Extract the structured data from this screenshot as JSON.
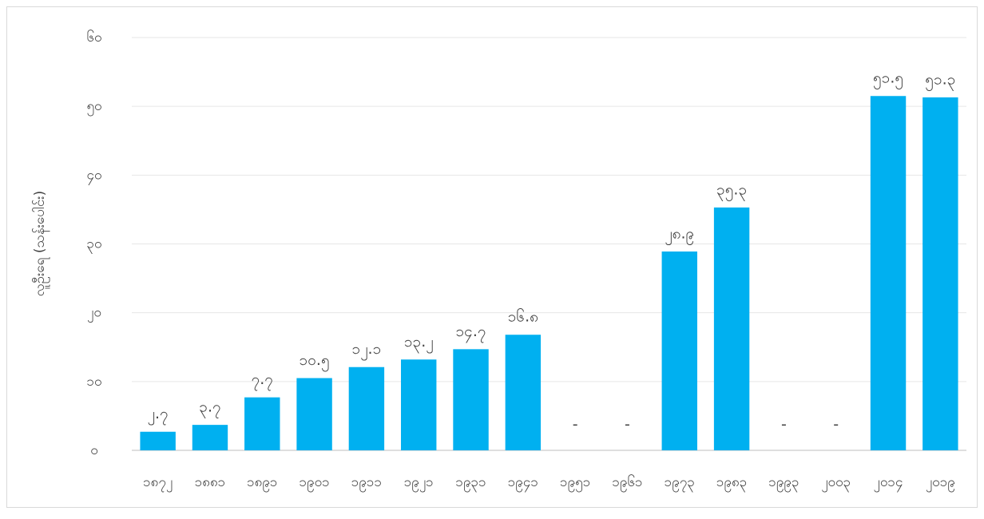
{
  "chart_data": {
    "type": "bar",
    "y_label": "လူဦးရေ (သန်းပေါင်း)",
    "categories": [
      "၁၈၇၂",
      "၁၈၈၁",
      "၁၈၉၁",
      "၁၉၀၁",
      "၁၉၁၁",
      "၁၉၂၁",
      "၁၉၃၁",
      "၁၉၄၁",
      "၁၉၅၁",
      "၁၉၆၁",
      "၁၉၇၃",
      "၁၉၈၃",
      "၁၉၉၃",
      "၂၀၀၃",
      "၂၀၁၄",
      "၂၀၁၉"
    ],
    "values": [
      2.7,
      3.7,
      7.7,
      10.5,
      12.1,
      13.2,
      14.7,
      16.8,
      null,
      null,
      28.9,
      35.3,
      null,
      null,
      51.5,
      51.3
    ],
    "value_labels": [
      "၂.၇",
      "၃.၇",
      "၇.၇",
      "၁၀.၅",
      "၁၂.၁",
      "၁၃.၂",
      "၁၄.၇",
      "၁၆.၈",
      "-",
      "-",
      "၂၈.၉",
      "၃၅.၃",
      "-",
      "-",
      "၅၁.၅",
      "၅၁.၃"
    ],
    "color": "#00b0f0",
    "ylim": [
      0,
      60
    ],
    "yticks": [
      {
        "value": 0,
        "label": "၀"
      },
      {
        "value": 10,
        "label": "၁၀"
      },
      {
        "value": 20,
        "label": "၂၀"
      },
      {
        "value": 30,
        "label": "၃၀"
      },
      {
        "value": 40,
        "label": "၄၀"
      },
      {
        "value": 50,
        "label": "၅၀"
      },
      {
        "value": 60,
        "label": "၆၀"
      }
    ],
    "grid": true
  }
}
